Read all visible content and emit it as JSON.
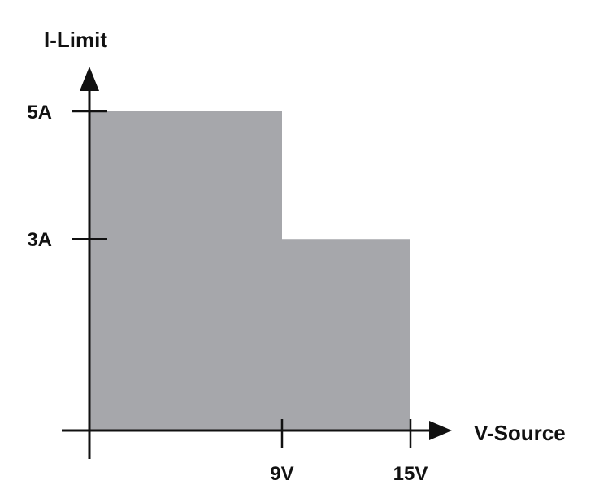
{
  "chart_data": {
    "type": "area",
    "title": "",
    "xlabel": "V-Source",
    "ylabel": "I-Limit",
    "x_ticks": [
      {
        "value": 9,
        "label": "9V"
      },
      {
        "value": 15,
        "label": "15V"
      }
    ],
    "y_ticks": [
      {
        "value": 5,
        "label": "5A"
      },
      {
        "value": 3,
        "label": "3A"
      }
    ],
    "xlim": [
      0,
      15
    ],
    "ylim": [
      0,
      5
    ],
    "series": [
      {
        "x": [
          0,
          9,
          9,
          15
        ],
        "y": [
          5,
          5,
          3,
          3
        ]
      }
    ],
    "fill_color": "#a6a7ab",
    "axis_color": "#111111",
    "grid": false
  }
}
